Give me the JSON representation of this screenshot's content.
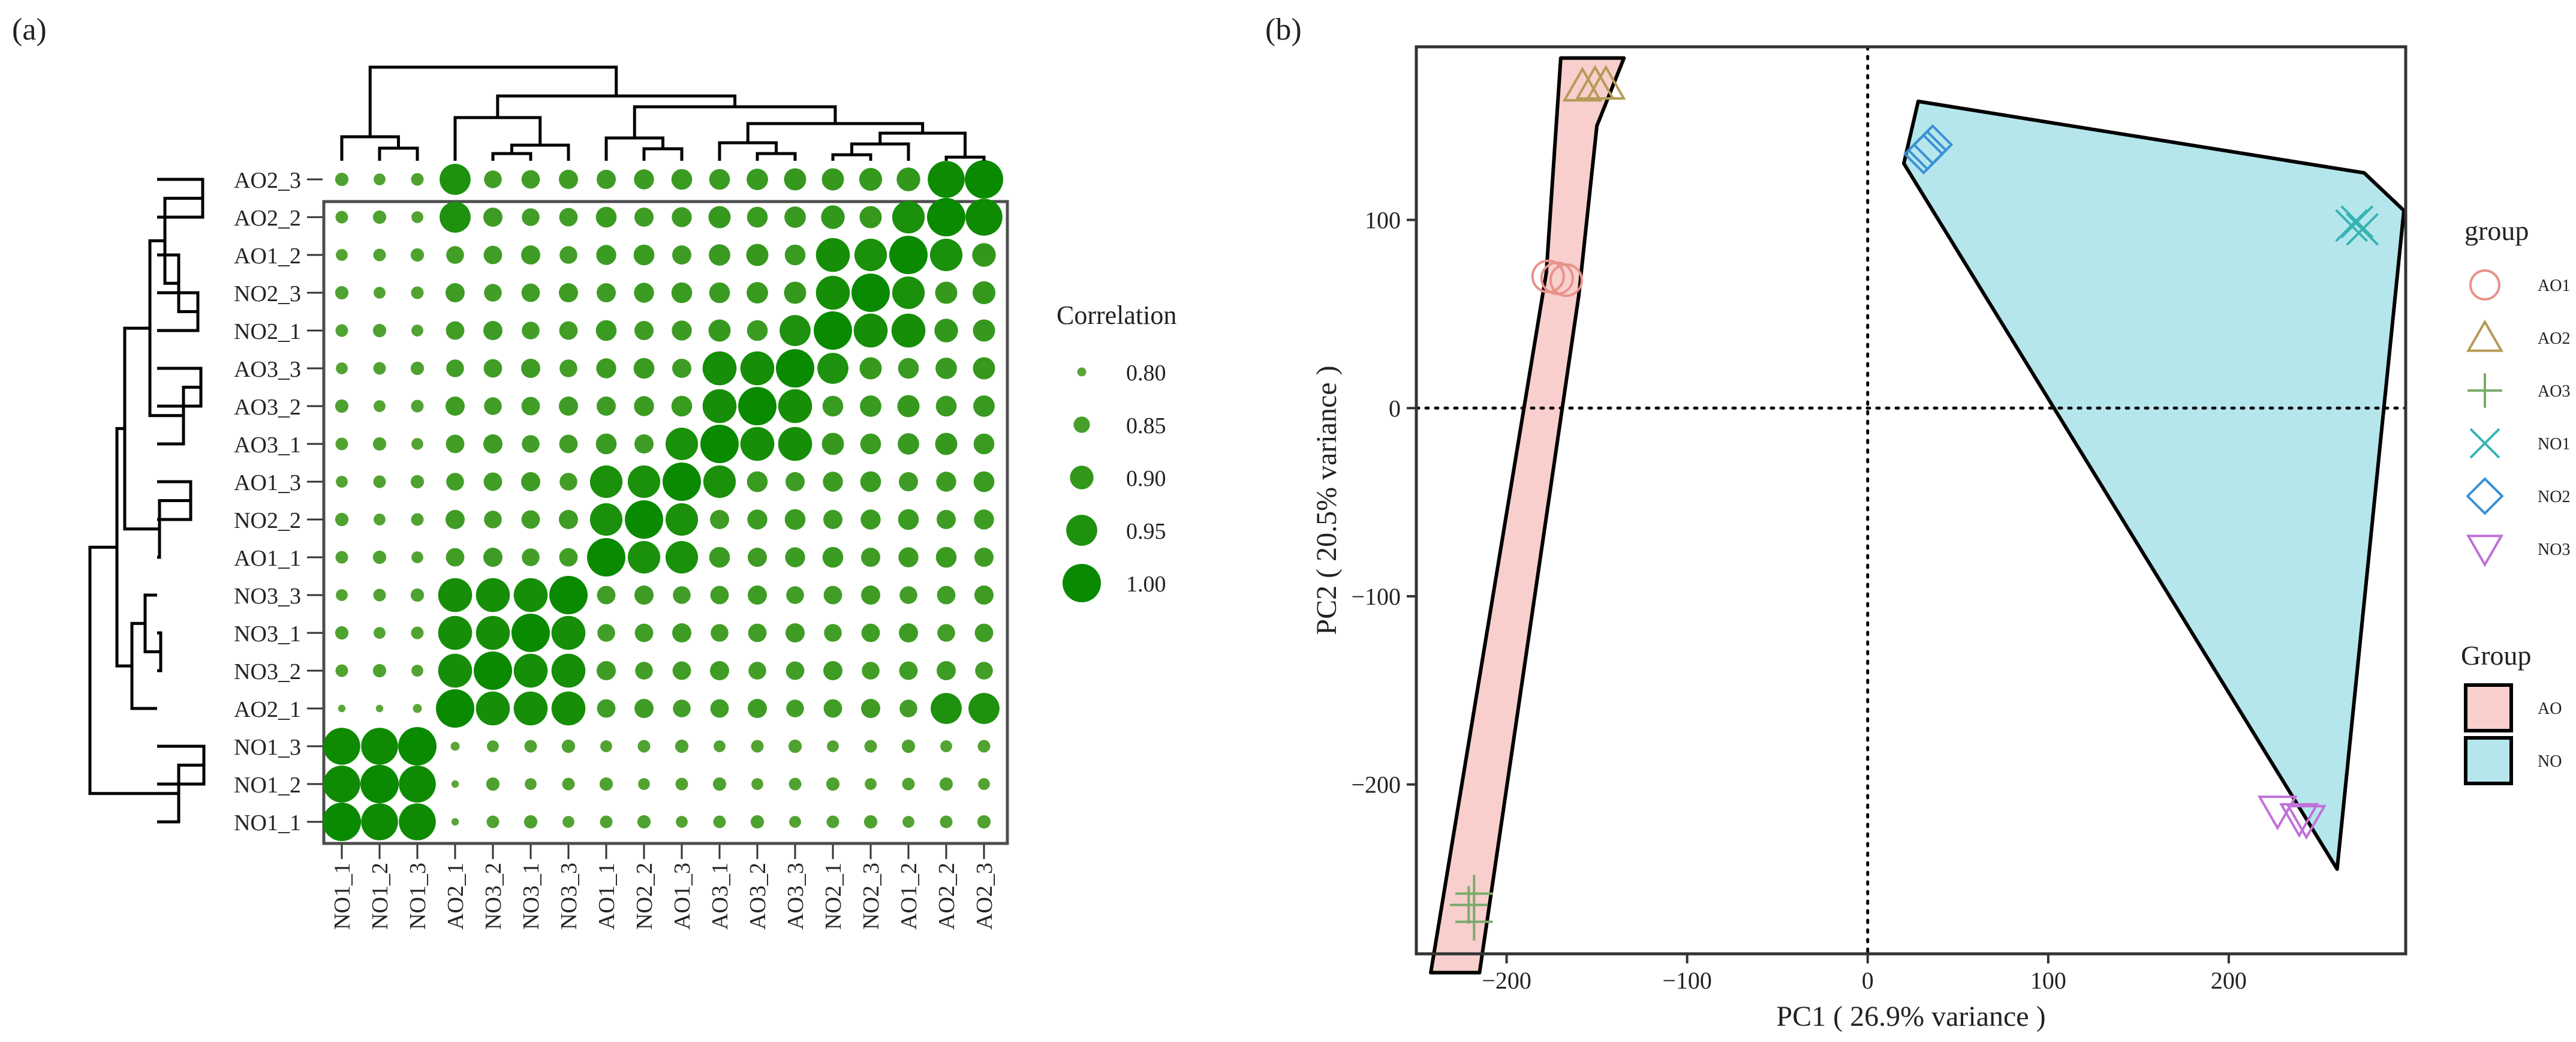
{
  "chart_data": [
    {
      "type": "heatmap",
      "panel_label": "(a)",
      "labels": [
        "NO1_1",
        "NO1_2",
        "NO1_3",
        "AO2_1",
        "NO3_2",
        "NO3_1",
        "NO3_3",
        "AO1_1",
        "NO2_2",
        "AO1_3",
        "AO3_1",
        "AO3_2",
        "AO3_3",
        "NO2_1",
        "NO2_3",
        "AO1_2",
        "AO2_2",
        "AO2_3"
      ],
      "row_labels_top_to_bottom": [
        "AO2_3",
        "AO2_2",
        "AO1_2",
        "NO2_3",
        "NO2_1",
        "AO3_3",
        "AO3_2",
        "AO3_1",
        "AO1_3",
        "NO2_2",
        "AO1_1",
        "NO3_3",
        "NO3_1",
        "NO3_2",
        "AO2_1",
        "NO1_3",
        "NO1_2",
        "NO1_1"
      ],
      "groups": [
        {
          "members": [
            0,
            1,
            2
          ],
          "within": 0.99,
          "to_other": 0.82
        },
        {
          "members": [
            3,
            4,
            5,
            6
          ],
          "within": 0.97,
          "to_other": 0.86
        },
        {
          "members": [
            7,
            8,
            9
          ],
          "within": 0.96,
          "to_other": 0.87
        },
        {
          "members": [
            10,
            11,
            12
          ],
          "within": 0.97,
          "to_other": 0.88
        },
        {
          "members": [
            13,
            14,
            15
          ],
          "within": 0.97,
          "to_other": 0.89
        },
        {
          "members": [
            16,
            17
          ],
          "within": 0.99,
          "to_other": 0.89
        }
      ],
      "overrides": [
        {
          "a": 0,
          "b": 3,
          "value": 0.79
        },
        {
          "a": 3,
          "b": 1,
          "value": 0.79
        },
        {
          "a": 3,
          "b": 2,
          "value": 0.8
        },
        {
          "a": 3,
          "b": 16,
          "value": 0.95
        },
        {
          "a": 3,
          "b": 17,
          "value": 0.95
        },
        {
          "a": 9,
          "b": 10,
          "value": 0.96
        },
        {
          "a": 12,
          "b": 13,
          "value": 0.95
        },
        {
          "a": 14,
          "b": 15,
          "value": 0.96
        },
        {
          "a": 15,
          "b": 16,
          "value": 0.96
        }
      ],
      "legend": {
        "title": "Correlation",
        "values": [
          0.8,
          0.85,
          0.9,
          0.95,
          1.0
        ],
        "labels": [
          "0.80",
          "0.85",
          "0.90",
          "0.95",
          "1.00"
        ]
      },
      "size_range": [
        0.78,
        1.0
      ],
      "colors": {
        "low": "#5aa637",
        "high": "#0a8a00",
        "border": "#4d4d4d",
        "dendrogram": "#000000"
      }
    },
    {
      "type": "scatter",
      "panel_label": "(b)",
      "xlabel": "PC1 ( 26.9% variance )",
      "ylabel": "PC2 ( 20.5% variance )",
      "xlim": [
        -250,
        298
      ],
      "ylim": [
        -290,
        192
      ],
      "xticks": [
        -200,
        -100,
        0,
        100,
        200
      ],
      "xtick_labels": [
        "−200",
        "−100",
        "0",
        "100",
        "200"
      ],
      "yticks": [
        -200,
        -100,
        0,
        100
      ],
      "ytick_labels": [
        "−200",
        "−100",
        "0",
        "100"
      ],
      "series": [
        {
          "name": "AO1",
          "marker": "circle",
          "color": "#e8928a",
          "points": [
            [
              -177,
              70
            ],
            [
              -172,
              69
            ],
            [
              -167,
              68
            ]
          ]
        },
        {
          "name": "AO2",
          "marker": "triangle",
          "color": "#b59a55",
          "points": [
            [
              -151,
              172
            ],
            [
              -158,
              171
            ],
            [
              -145,
              172
            ]
          ]
        },
        {
          "name": "AO3",
          "marker": "plus",
          "color": "#7aaa6a",
          "points": [
            [
              -221,
              -264
            ],
            [
              -218,
              -258
            ],
            [
              -218,
              -273
            ]
          ]
        },
        {
          "name": "NO1",
          "marker": "x",
          "color": "#36b3b3",
          "points": [
            [
              268,
              97
            ],
            [
              274,
              95
            ],
            [
              271,
              99
            ]
          ]
        },
        {
          "name": "NO2",
          "marker": "diamond",
          "color": "#3a90d4",
          "points": [
            [
              33,
              137
            ],
            [
              36,
              140
            ],
            [
              31,
              135
            ]
          ]
        },
        {
          "name": "NO3",
          "marker": "triangle-down",
          "color": "#c070d8",
          "points": [
            [
              227,
              -214
            ],
            [
              239,
              -218
            ],
            [
              243,
              -219
            ]
          ]
        }
      ],
      "hulls": [
        {
          "name": "AO",
          "fill": "#f8cfcd",
          "points": [
            [
              -170,
              186
            ],
            [
              -135,
              186
            ],
            [
              -150,
              150
            ],
            [
              -160,
              60
            ],
            [
              -215,
              -300
            ],
            [
              -242,
              -300
            ],
            [
              -178,
              72
            ]
          ]
        },
        {
          "name": "NO",
          "fill": "#b4e6ec",
          "points": [
            [
              28,
              163
            ],
            [
              275,
              125
            ],
            [
              297,
              105
            ],
            [
              260,
              -245
            ],
            [
              20,
              130
            ]
          ]
        }
      ],
      "legend_group": {
        "title": "group",
        "items": [
          "AO1",
          "AO2",
          "AO3",
          "NO1",
          "NO2",
          "NO3"
        ]
      },
      "legend_hull": {
        "title": "Group",
        "items": [
          "AO",
          "NO"
        ]
      }
    }
  ]
}
